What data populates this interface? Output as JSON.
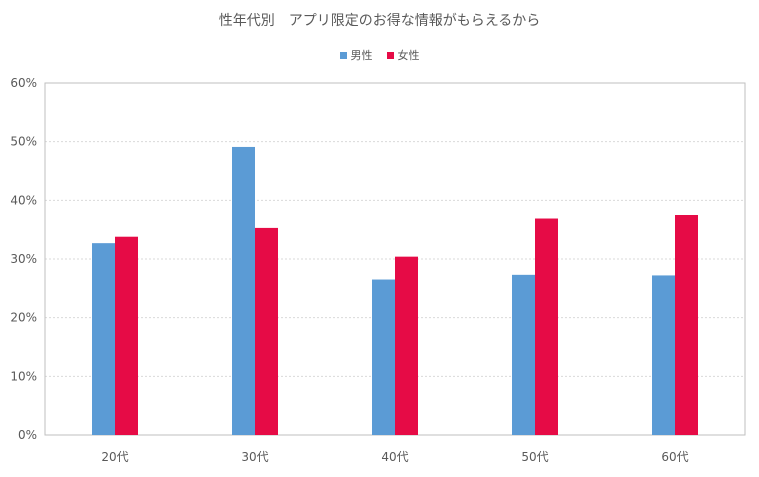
{
  "chart_data": {
    "type": "bar",
    "title": "性年代別　アプリ限定のお得な情報がもらえるから",
    "categories": [
      "20代",
      "30代",
      "40代",
      "50代",
      "60代"
    ],
    "series": [
      {
        "name": "男性",
        "values": [
          32.7,
          49.1,
          26.5,
          27.3,
          27.2
        ],
        "color": "#5b9bd5"
      },
      {
        "name": "女性",
        "values": [
          33.8,
          35.3,
          30.4,
          36.9,
          37.5
        ],
        "color": "#e60b46"
      }
    ],
    "ylim": [
      0,
      60
    ],
    "yticks": [
      "0%",
      "10%",
      "20%",
      "30%",
      "40%",
      "50%",
      "60%"
    ],
    "legend_position": "top",
    "grid": true
  }
}
